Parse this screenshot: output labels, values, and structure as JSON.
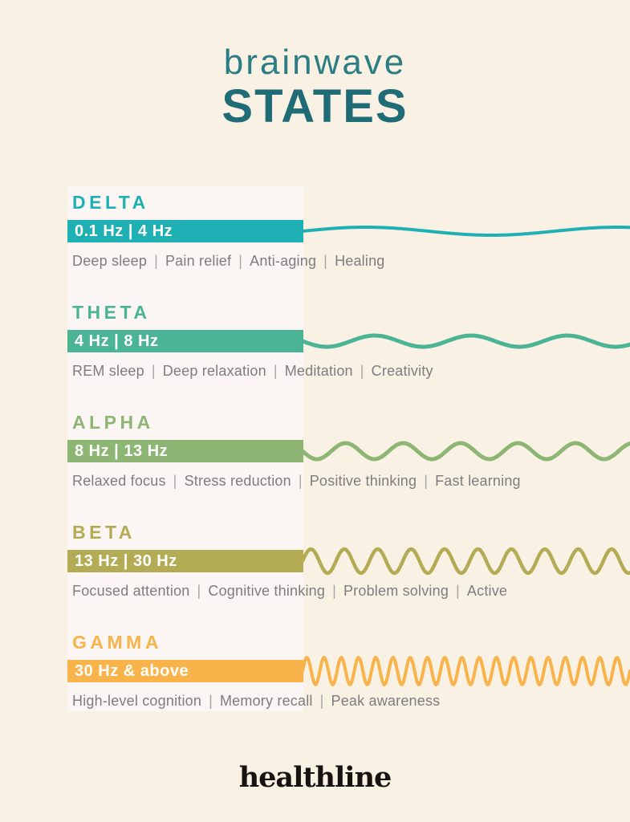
{
  "title": {
    "light": "brainwave",
    "bold": "STATES"
  },
  "colors": {
    "background": "#FAF1E5",
    "panel": "#FBF6F3",
    "title_light": "#2C7E84",
    "title_bold": "#206C76",
    "description_text": "#7D7D7F",
    "separator": "#A5A5A5",
    "bar_label": "#FFFFFF",
    "brand_text": "#171310"
  },
  "sections": [
    {
      "name": "DELTA",
      "range": "0.1 Hz | 4 Hz",
      "benefits": [
        "Deep sleep",
        "Pain relief",
        "Anti-aging",
        "Healing"
      ],
      "color": "#1FB0B4",
      "wave": {
        "cycles": 1.3,
        "amplitude": 5,
        "stroke": 4,
        "direction": 1
      }
    },
    {
      "name": "THETA",
      "range": "4 Hz | 8 Hz",
      "benefits": [
        "REM sleep",
        "Deep relaxation",
        "Meditation",
        "Creativity"
      ],
      "color": "#4BB495",
      "wave": {
        "cycles": 3.4,
        "amplitude": 7,
        "stroke": 5,
        "direction": -1
      }
    },
    {
      "name": "ALPHA",
      "range": "8 Hz | 13 Hz",
      "benefits": [
        "Relaxed focus",
        "Stress reduction",
        "Positive thinking",
        "Fast learning"
      ],
      "color": "#8DB674",
      "wave": {
        "cycles": 5.7,
        "amplitude": 10,
        "stroke": 5,
        "direction": -1
      }
    },
    {
      "name": "BETA",
      "range": "13 Hz | 30 Hz",
      "benefits": [
        "Focused attention",
        "Cognitive thinking",
        "Problem solving",
        "Active"
      ],
      "color": "#B4AC55",
      "wave": {
        "cycles": 9.8,
        "amplitude": 15,
        "stroke": 4.5,
        "direction": 1
      }
    },
    {
      "name": "GAMMA",
      "range": "30 Hz & above",
      "benefits": [
        "High-level cognition",
        "Memory recall",
        "Peak awareness"
      ],
      "color": "#F8B44B",
      "wave": {
        "cycles": 19,
        "amplitude": 17,
        "stroke": 4,
        "direction": 1
      }
    }
  ],
  "footer": {
    "brand": "healthline"
  }
}
